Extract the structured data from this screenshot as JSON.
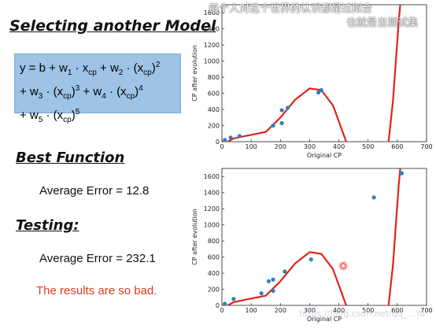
{
  "slide": {
    "title": "Selecting another Model",
    "formula": {
      "line1_prefix": "y = b + w",
      "line1_w1sub": "1",
      "line1_x1": " · x",
      "line1_cp1": "cp",
      "line1_w2": " + w",
      "line1_w2sub": "2",
      "line1_x2": " · (x",
      "line1_cp2": "cp",
      "line1_close2": ")",
      "line1_exp2": "2",
      "line2_w3": "+ w",
      "line2_w3sub": "3",
      "line2_x3": " · (x",
      "line2_cp3": "cp",
      "line2_close3": ")",
      "line2_exp3": "3",
      "line2_w4": " + w",
      "line2_w4sub": "4",
      "line2_x4": " · (x",
      "line2_cp4": "cp",
      "line2_close4": ")",
      "line2_exp4": "4",
      "line3_w5": "+ w",
      "line3_w5sub": "5",
      "line3_x5": " · (x",
      "line3_cp5": "cp",
      "line3_close5": ")",
      "line3_exp5": "5"
    },
    "best_function_heading": "Best Function",
    "best_avg_error": "Average Error = 12.8",
    "testing_heading": "Testing:",
    "testing_avg_error": "Average Error = 232.1",
    "conclusion": "The results are so bad."
  },
  "overlay": {
    "line1": "每个人对这个世界的认识都是过拟合",
    "line2": "也就是当测试集"
  },
  "watermark": "https://blog.csdn.net/qq_...Yu",
  "colors": {
    "formula_bg": "#9dc3e6",
    "curve": "#e0251b",
    "point": "#2f7fc1",
    "bad_text": "#e03a1e",
    "highlight": "#e8574f"
  },
  "chart_data": [
    {
      "type": "scatter",
      "title": "",
      "xlabel": "Original CP",
      "ylabel": "CP after evolution",
      "xlim": [
        0,
        700
      ],
      "ylim": [
        0,
        1700
      ],
      "xticks": [
        "0",
        "100",
        "200",
        "300",
        "400",
        "500",
        "600",
        "700"
      ],
      "yticks": [
        "0",
        "200",
        "400",
        "600",
        "800",
        "1000",
        "1200",
        "1400",
        "1600"
      ],
      "points": [
        {
          "x": 10,
          "y": 20
        },
        {
          "x": 30,
          "y": 50
        },
        {
          "x": 60,
          "y": 70
        },
        {
          "x": 175,
          "y": 200
        },
        {
          "x": 205,
          "y": 230
        },
        {
          "x": 205,
          "y": 390
        },
        {
          "x": 225,
          "y": 420
        },
        {
          "x": 330,
          "y": 610
        },
        {
          "x": 340,
          "y": 640
        }
      ],
      "curve": [
        {
          "x": 20,
          "y": 0
        },
        {
          "x": 40,
          "y": 40
        },
        {
          "x": 80,
          "y": 70
        },
        {
          "x": 150,
          "y": 120
        },
        {
          "x": 200,
          "y": 300
        },
        {
          "x": 250,
          "y": 520
        },
        {
          "x": 300,
          "y": 660
        },
        {
          "x": 340,
          "y": 640
        },
        {
          "x": 380,
          "y": 450
        },
        {
          "x": 410,
          "y": 150
        },
        {
          "x": 425,
          "y": 0
        }
      ],
      "curve2": [
        {
          "x": 570,
          "y": 0
        },
        {
          "x": 585,
          "y": 500
        },
        {
          "x": 595,
          "y": 1000
        },
        {
          "x": 605,
          "y": 1500
        },
        {
          "x": 610,
          "y": 1700
        }
      ],
      "grid": false
    },
    {
      "type": "scatter",
      "title": "",
      "xlabel": "Original CP",
      "ylabel": "CP after evolution",
      "xlim": [
        0,
        700
      ],
      "ylim": [
        0,
        1700
      ],
      "xticks": [
        "0",
        "100",
        "200",
        "300",
        "400",
        "500",
        "600",
        "700"
      ],
      "yticks": [
        "0",
        "200",
        "400",
        "600",
        "800",
        "1000",
        "1200",
        "1400",
        "1600"
      ],
      "points": [
        {
          "x": 10,
          "y": 20
        },
        {
          "x": 40,
          "y": 80
        },
        {
          "x": 135,
          "y": 150
        },
        {
          "x": 160,
          "y": 300
        },
        {
          "x": 175,
          "y": 320
        },
        {
          "x": 175,
          "y": 180
        },
        {
          "x": 215,
          "y": 420
        },
        {
          "x": 305,
          "y": 570
        },
        {
          "x": 520,
          "y": 1340
        },
        {
          "x": 615,
          "y": 1640
        }
      ],
      "highlight_point": {
        "x": 415,
        "y": 490
      },
      "curve": [
        {
          "x": 20,
          "y": 0
        },
        {
          "x": 40,
          "y": 40
        },
        {
          "x": 80,
          "y": 70
        },
        {
          "x": 150,
          "y": 120
        },
        {
          "x": 200,
          "y": 300
        },
        {
          "x": 250,
          "y": 520
        },
        {
          "x": 300,
          "y": 660
        },
        {
          "x": 340,
          "y": 640
        },
        {
          "x": 380,
          "y": 450
        },
        {
          "x": 410,
          "y": 150
        },
        {
          "x": 425,
          "y": 0
        }
      ],
      "curve2": [
        {
          "x": 570,
          "y": 0
        },
        {
          "x": 585,
          "y": 500
        },
        {
          "x": 595,
          "y": 1000
        },
        {
          "x": 605,
          "y": 1500
        },
        {
          "x": 610,
          "y": 1700
        }
      ],
      "grid": false
    }
  ]
}
